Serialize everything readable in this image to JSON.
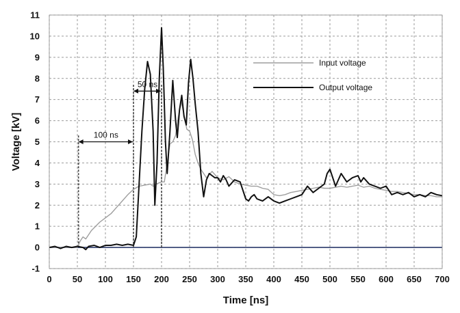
{
  "chart_data": {
    "type": "line",
    "xlabel": "Time [ns]",
    "ylabel": "Voltage [kV]",
    "xlim": [
      0,
      700
    ],
    "ylim": [
      -1,
      11
    ],
    "x_ticks": [
      0,
      50,
      100,
      150,
      200,
      250,
      300,
      350,
      400,
      450,
      500,
      550,
      600,
      650,
      700
    ],
    "y_ticks": [
      -1,
      0,
      1,
      2,
      3,
      4,
      5,
      6,
      7,
      8,
      9,
      10,
      11
    ],
    "grid": true,
    "legend_position": "top-right",
    "series": [
      {
        "name": "Input voltage",
        "color": "#9e9e9e",
        "points": [
          [
            0,
            0.0
          ],
          [
            50,
            0.0
          ],
          [
            55,
            0.3
          ],
          [
            60,
            0.5
          ],
          [
            65,
            0.4
          ],
          [
            75,
            0.8
          ],
          [
            90,
            1.2
          ],
          [
            100,
            1.4
          ],
          [
            110,
            1.6
          ],
          [
            120,
            1.9
          ],
          [
            130,
            2.2
          ],
          [
            140,
            2.5
          ],
          [
            150,
            2.75
          ],
          [
            160,
            2.9
          ],
          [
            170,
            2.95
          ],
          [
            180,
            3.0
          ],
          [
            185,
            2.9
          ],
          [
            190,
            3.0
          ],
          [
            195,
            3.05
          ],
          [
            200,
            3.1
          ],
          [
            205,
            3.1
          ],
          [
            210,
            4.0
          ],
          [
            215,
            4.9
          ],
          [
            220,
            5.0
          ],
          [
            225,
            5.3
          ],
          [
            230,
            6.2
          ],
          [
            235,
            6.9
          ],
          [
            240,
            6.3
          ],
          [
            245,
            5.6
          ],
          [
            250,
            5.5
          ],
          [
            255,
            5.1
          ],
          [
            260,
            4.4
          ],
          [
            265,
            4.0
          ],
          [
            270,
            3.7
          ],
          [
            275,
            3.5
          ],
          [
            280,
            3.3
          ],
          [
            290,
            3.6
          ],
          [
            300,
            3.3
          ],
          [
            310,
            3.2
          ],
          [
            320,
            3.35
          ],
          [
            330,
            3.1
          ],
          [
            340,
            3.0
          ],
          [
            350,
            2.95
          ],
          [
            360,
            2.9
          ],
          [
            370,
            2.9
          ],
          [
            380,
            2.8
          ],
          [
            390,
            2.75
          ],
          [
            400,
            2.5
          ],
          [
            410,
            2.45
          ],
          [
            420,
            2.5
          ],
          [
            430,
            2.6
          ],
          [
            440,
            2.65
          ],
          [
            450,
            2.7
          ],
          [
            460,
            2.75
          ],
          [
            470,
            2.8
          ],
          [
            480,
            2.85
          ],
          [
            490,
            2.8
          ],
          [
            500,
            2.8
          ],
          [
            510,
            2.85
          ],
          [
            520,
            2.9
          ],
          [
            530,
            2.85
          ],
          [
            540,
            2.9
          ],
          [
            550,
            2.95
          ],
          [
            560,
            2.85
          ],
          [
            570,
            2.9
          ],
          [
            580,
            2.8
          ],
          [
            590,
            2.75
          ],
          [
            600,
            2.7
          ],
          [
            610,
            2.65
          ],
          [
            620,
            2.65
          ],
          [
            630,
            2.6
          ],
          [
            640,
            2.55
          ],
          [
            650,
            2.5
          ],
          [
            660,
            2.5
          ],
          [
            670,
            2.45
          ],
          [
            680,
            2.45
          ],
          [
            690,
            2.4
          ],
          [
            700,
            2.4
          ]
        ]
      },
      {
        "name": "Output voltage",
        "color": "#111111",
        "points": [
          [
            0,
            0.0
          ],
          [
            10,
            0.05
          ],
          [
            20,
            -0.05
          ],
          [
            30,
            0.05
          ],
          [
            40,
            0.0
          ],
          [
            50,
            0.05
          ],
          [
            60,
            0.0
          ],
          [
            65,
            -0.1
          ],
          [
            70,
            0.05
          ],
          [
            80,
            0.1
          ],
          [
            90,
            0.0
          ],
          [
            100,
            0.1
          ],
          [
            110,
            0.1
          ],
          [
            120,
            0.15
          ],
          [
            130,
            0.1
          ],
          [
            140,
            0.15
          ],
          [
            150,
            0.1
          ],
          [
            155,
            0.5
          ],
          [
            160,
            3.0
          ],
          [
            165,
            5.5
          ],
          [
            170,
            7.5
          ],
          [
            175,
            8.8
          ],
          [
            180,
            8.2
          ],
          [
            185,
            5.5
          ],
          [
            188,
            2.0
          ],
          [
            192,
            4.0
          ],
          [
            196,
            8.0
          ],
          [
            200,
            10.4
          ],
          [
            203,
            8.5
          ],
          [
            207,
            5.0
          ],
          [
            210,
            3.5
          ],
          [
            215,
            5.5
          ],
          [
            220,
            7.9
          ],
          [
            225,
            6.0
          ],
          [
            228,
            5.2
          ],
          [
            232,
            6.5
          ],
          [
            236,
            7.2
          ],
          [
            240,
            6.2
          ],
          [
            244,
            5.8
          ],
          [
            248,
            7.8
          ],
          [
            252,
            8.9
          ],
          [
            256,
            8.0
          ],
          [
            260,
            6.8
          ],
          [
            265,
            5.5
          ],
          [
            270,
            3.5
          ],
          [
            275,
            2.4
          ],
          [
            280,
            3.2
          ],
          [
            285,
            3.5
          ],
          [
            290,
            3.4
          ],
          [
            295,
            3.3
          ],
          [
            300,
            3.3
          ],
          [
            305,
            3.1
          ],
          [
            310,
            3.4
          ],
          [
            315,
            3.2
          ],
          [
            320,
            2.9
          ],
          [
            330,
            3.2
          ],
          [
            340,
            3.1
          ],
          [
            345,
            2.7
          ],
          [
            350,
            2.3
          ],
          [
            355,
            2.2
          ],
          [
            360,
            2.4
          ],
          [
            365,
            2.5
          ],
          [
            370,
            2.3
          ],
          [
            380,
            2.2
          ],
          [
            390,
            2.4
          ],
          [
            400,
            2.2
          ],
          [
            410,
            2.1
          ],
          [
            420,
            2.2
          ],
          [
            430,
            2.3
          ],
          [
            440,
            2.4
          ],
          [
            450,
            2.5
          ],
          [
            455,
            2.7
          ],
          [
            460,
            2.9
          ],
          [
            470,
            2.6
          ],
          [
            480,
            2.8
          ],
          [
            490,
            3.0
          ],
          [
            495,
            3.5
          ],
          [
            500,
            3.7
          ],
          [
            505,
            3.3
          ],
          [
            510,
            2.9
          ],
          [
            515,
            3.2
          ],
          [
            520,
            3.5
          ],
          [
            530,
            3.1
          ],
          [
            540,
            3.3
          ],
          [
            550,
            3.4
          ],
          [
            555,
            3.1
          ],
          [
            560,
            3.3
          ],
          [
            570,
            3.0
          ],
          [
            580,
            2.9
          ],
          [
            590,
            2.8
          ],
          [
            600,
            2.9
          ],
          [
            605,
            2.7
          ],
          [
            610,
            2.5
          ],
          [
            620,
            2.6
          ],
          [
            630,
            2.5
          ],
          [
            640,
            2.6
          ],
          [
            650,
            2.4
          ],
          [
            660,
            2.5
          ],
          [
            670,
            2.4
          ],
          [
            680,
            2.6
          ],
          [
            690,
            2.5
          ],
          [
            700,
            2.45
          ]
        ]
      }
    ],
    "annotations": [
      {
        "label": "100 ns",
        "x_start": 52,
        "x_end": 150,
        "y": 5.0
      },
      {
        "label": "50 ns",
        "x_start": 150,
        "x_end": 200,
        "y": 7.4
      }
    ],
    "baseline": {
      "y": 0,
      "color": "#2b3a6b"
    }
  }
}
